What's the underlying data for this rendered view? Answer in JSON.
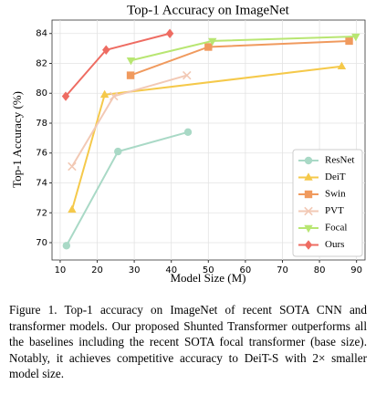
{
  "chart_data": {
    "type": "line",
    "title": "Top-1 Accuracy on ImageNet",
    "x_label": "Model Size (M)",
    "y_label": "Top-1 Accuracy (%)",
    "xlim": [
      7.8,
      92.3
    ],
    "ylim": [
      68.84,
      84.9
    ],
    "xticks": [
      10,
      20,
      30,
      40,
      50,
      60,
      70,
      80,
      90
    ],
    "yticks": [
      70,
      72,
      74,
      76,
      78,
      80,
      82,
      84
    ],
    "grid": true,
    "legend": "lower right",
    "series": [
      {
        "name": "ResNet",
        "color": "#a9d9c6",
        "marker": "circle",
        "x": [
          11.7,
          25.6,
          44.5
        ],
        "values": [
          69.8,
          76.1,
          77.4
        ]
      },
      {
        "name": "DeiT",
        "color": "#f5c94a",
        "marker": "triangle-up",
        "x": [
          13.2,
          22,
          86
        ],
        "values": [
          72.2,
          79.9,
          81.8
        ]
      },
      {
        "name": "Swin",
        "color": "#f09a5e",
        "marker": "square",
        "x": [
          29,
          50,
          88
        ],
        "values": [
          81.2,
          83.1,
          83.5
        ]
      },
      {
        "name": "PVT",
        "color": "#f2c9b5",
        "marker": "x",
        "x": [
          13.2,
          24.5,
          44.2
        ],
        "values": [
          75.1,
          79.8,
          81.2
        ]
      },
      {
        "name": "Focal",
        "color": "#b8e672",
        "marker": "triangle-down",
        "x": [
          29.1,
          51.1,
          89.8
        ],
        "values": [
          82.2,
          83.5,
          83.8
        ]
      },
      {
        "name": "Ours",
        "color": "#ee6c62",
        "marker": "diamond",
        "x": [
          11.5,
          22.4,
          39.6
        ],
        "values": [
          79.8,
          82.9,
          84.0
        ]
      }
    ]
  },
  "caption": "Figure 1. Top-1 accuracy on ImageNet of recent SOTA CNN and transformer models. Our proposed Shunted Transformer outperforms all the baselines including the recent SOTA focal transformer (base size). Notably, it achieves competitive accuracy to DeiT-S with 2× smaller model size."
}
